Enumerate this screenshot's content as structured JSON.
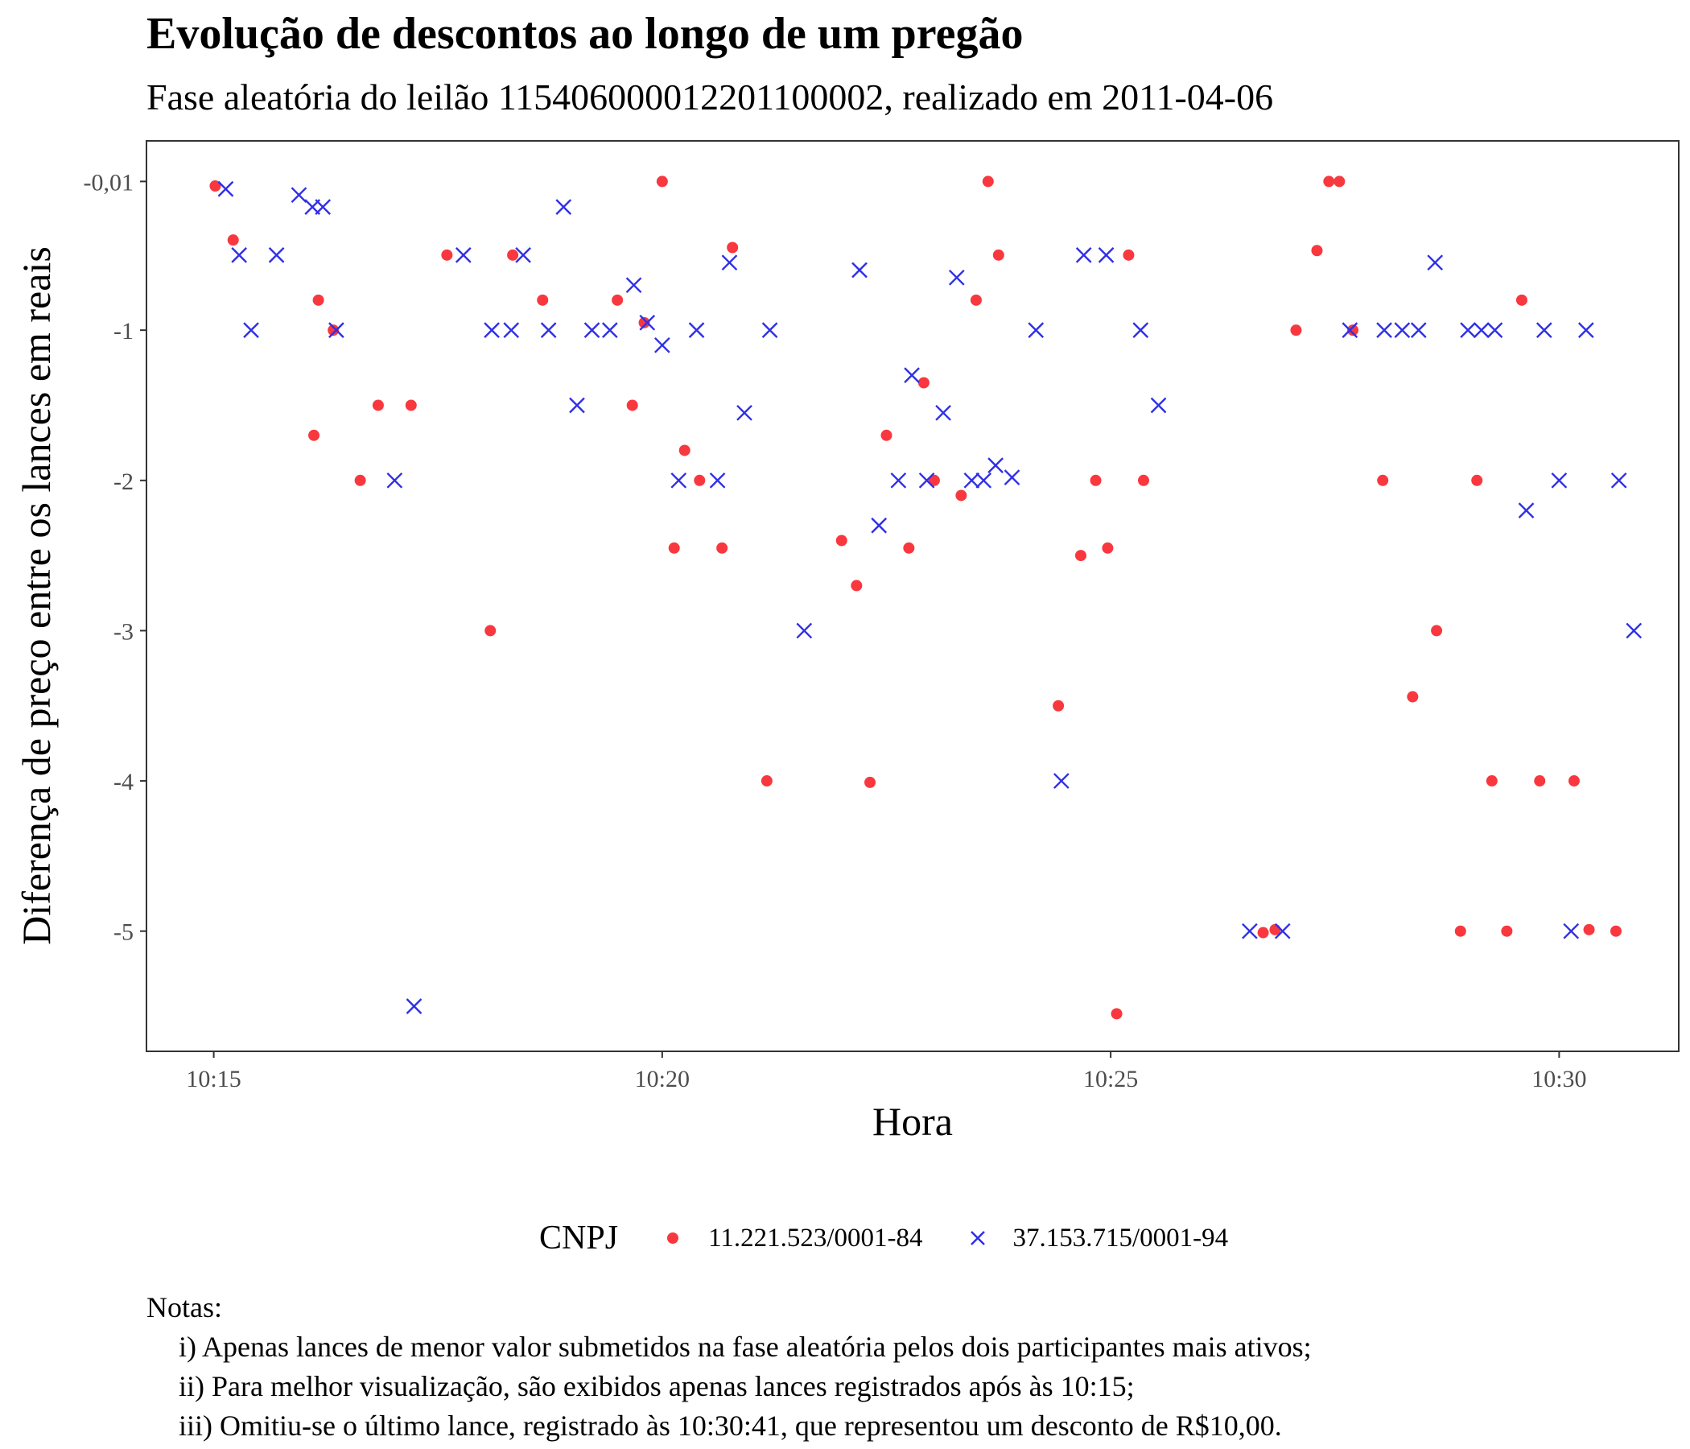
{
  "chart_data": {
    "type": "scatter",
    "title": "Evolução de descontos ao longo de um pregão",
    "subtitle": "Fase aleatória do leilão 115406000012201100002, realizado em 2011-04-06",
    "xlabel": "Hora",
    "ylabel": "Diferença de preço entre os lances em reais",
    "xlim": [
      "10:14:15",
      "10:31:20"
    ],
    "ylim": [
      -5.8,
      0.26
    ],
    "x_ticks": [
      {
        "value": "10:15:00",
        "label": "10:15"
      },
      {
        "value": "10:20:00",
        "label": "10:20"
      },
      {
        "value": "10:25:00",
        "label": "10:25"
      },
      {
        "value": "10:30:00",
        "label": "10:30"
      }
    ],
    "y_ticks": [
      {
        "value": -0.01,
        "label": "-0,01"
      },
      {
        "value": -1,
        "label": "-1"
      },
      {
        "value": -2,
        "label": "-2"
      },
      {
        "value": -3,
        "label": "-3"
      },
      {
        "value": -4,
        "label": "-4"
      },
      {
        "value": -5,
        "label": "-5"
      }
    ],
    "grid": false,
    "legend": {
      "title": "CNPJ",
      "position": "bottom"
    },
    "series": [
      {
        "name": "11.221.523/0001-84",
        "marker": "circle",
        "color": "#f8383e",
        "points": [
          {
            "x": "10:15:01",
            "y": -0.04
          },
          {
            "x": "10:15:13",
            "y": -0.4
          },
          {
            "x": "10:16:07",
            "y": -1.7
          },
          {
            "x": "10:16:10",
            "y": -0.8
          },
          {
            "x": "10:16:20",
            "y": -1.0
          },
          {
            "x": "10:16:38",
            "y": -2.0
          },
          {
            "x": "10:16:50",
            "y": -1.5
          },
          {
            "x": "10:17:12",
            "y": -1.5
          },
          {
            "x": "10:17:36",
            "y": -0.5
          },
          {
            "x": "10:18:05",
            "y": -3.0
          },
          {
            "x": "10:18:20",
            "y": -0.5
          },
          {
            "x": "10:18:40",
            "y": -0.8
          },
          {
            "x": "10:19:30",
            "y": -0.8
          },
          {
            "x": "10:19:40",
            "y": -1.5
          },
          {
            "x": "10:19:48",
            "y": -0.95
          },
          {
            "x": "10:20:00",
            "y": -0.01
          },
          {
            "x": "10:20:08",
            "y": -2.45
          },
          {
            "x": "10:20:15",
            "y": -1.8
          },
          {
            "x": "10:20:25",
            "y": -2.0
          },
          {
            "x": "10:20:40",
            "y": -2.45
          },
          {
            "x": "10:20:47",
            "y": -0.45
          },
          {
            "x": "10:21:10",
            "y": -4.0
          },
          {
            "x": "10:22:00",
            "y": -2.4
          },
          {
            "x": "10:22:10",
            "y": -2.7
          },
          {
            "x": "10:22:19",
            "y": -4.01
          },
          {
            "x": "10:22:30",
            "y": -1.7
          },
          {
            "x": "10:22:45",
            "y": -2.45
          },
          {
            "x": "10:22:55",
            "y": -1.35
          },
          {
            "x": "10:23:02",
            "y": -2.0
          },
          {
            "x": "10:23:20",
            "y": -2.1
          },
          {
            "x": "10:23:30",
            "y": -0.8
          },
          {
            "x": "10:23:38",
            "y": -0.01
          },
          {
            "x": "10:23:45",
            "y": -0.5
          },
          {
            "x": "10:24:25",
            "y": -3.5
          },
          {
            "x": "10:24:40",
            "y": -2.5
          },
          {
            "x": "10:24:50",
            "y": -2.0
          },
          {
            "x": "10:24:58",
            "y": -2.45
          },
          {
            "x": "10:25:04",
            "y": -5.55
          },
          {
            "x": "10:25:12",
            "y": -0.5
          },
          {
            "x": "10:25:22",
            "y": -2.0
          },
          {
            "x": "10:26:42",
            "y": -5.01
          },
          {
            "x": "10:26:50",
            "y": -4.99
          },
          {
            "x": "10:27:04",
            "y": -1.0
          },
          {
            "x": "10:27:18",
            "y": -0.47
          },
          {
            "x": "10:27:26",
            "y": -0.01
          },
          {
            "x": "10:27:33",
            "y": -0.01
          },
          {
            "x": "10:27:42",
            "y": -1.0
          },
          {
            "x": "10:28:02",
            "y": -2.0
          },
          {
            "x": "10:28:22",
            "y": -3.44
          },
          {
            "x": "10:28:38",
            "y": -3.0
          },
          {
            "x": "10:28:54",
            "y": -5.0
          },
          {
            "x": "10:29:05",
            "y": -2.0
          },
          {
            "x": "10:29:15",
            "y": -4.0
          },
          {
            "x": "10:29:25",
            "y": -5.0
          },
          {
            "x": "10:29:35",
            "y": -0.8
          },
          {
            "x": "10:29:47",
            "y": -4.0
          },
          {
            "x": "10:30:10",
            "y": -4.0
          },
          {
            "x": "10:30:20",
            "y": -4.99
          },
          {
            "x": "10:30:38",
            "y": -5.0
          }
        ]
      },
      {
        "name": "37.153.715/0001-94",
        "marker": "x",
        "color": "#2f2fe8",
        "points": [
          {
            "x": "10:15:08",
            "y": -0.06
          },
          {
            "x": "10:15:17",
            "y": -0.5
          },
          {
            "x": "10:15:25",
            "y": -1.0
          },
          {
            "x": "10:15:42",
            "y": -0.5
          },
          {
            "x": "10:15:57",
            "y": -0.1
          },
          {
            "x": "10:16:06",
            "y": -0.18
          },
          {
            "x": "10:16:13",
            "y": -0.18
          },
          {
            "x": "10:16:22",
            "y": -1.0
          },
          {
            "x": "10:17:01",
            "y": -2.0
          },
          {
            "x": "10:17:14",
            "y": -5.5
          },
          {
            "x": "10:17:47",
            "y": -0.5
          },
          {
            "x": "10:18:06",
            "y": -1.0
          },
          {
            "x": "10:18:19",
            "y": -1.0
          },
          {
            "x": "10:18:27",
            "y": -0.5
          },
          {
            "x": "10:18:44",
            "y": -1.0
          },
          {
            "x": "10:18:54",
            "y": -0.18
          },
          {
            "x": "10:19:03",
            "y": -1.5
          },
          {
            "x": "10:19:13",
            "y": -1.0
          },
          {
            "x": "10:19:25",
            "y": -1.0
          },
          {
            "x": "10:19:41",
            "y": -0.7
          },
          {
            "x": "10:19:50",
            "y": -0.95
          },
          {
            "x": "10:20:00",
            "y": -1.1
          },
          {
            "x": "10:20:11",
            "y": -2.0
          },
          {
            "x": "10:20:23",
            "y": -1.0
          },
          {
            "x": "10:20:37",
            "y": -2.0
          },
          {
            "x": "10:20:45",
            "y": -0.55
          },
          {
            "x": "10:20:55",
            "y": -1.55
          },
          {
            "x": "10:21:12",
            "y": -1.0
          },
          {
            "x": "10:21:35",
            "y": -3.0
          },
          {
            "x": "10:22:12",
            "y": -0.6
          },
          {
            "x": "10:22:25",
            "y": -2.3
          },
          {
            "x": "10:22:38",
            "y": -2.0
          },
          {
            "x": "10:22:47",
            "y": -1.3
          },
          {
            "x": "10:22:57",
            "y": -2.0
          },
          {
            "x": "10:23:08",
            "y": -1.55
          },
          {
            "x": "10:23:17",
            "y": -0.65
          },
          {
            "x": "10:23:27",
            "y": -2.0
          },
          {
            "x": "10:23:35",
            "y": -2.0
          },
          {
            "x": "10:23:43",
            "y": -1.9
          },
          {
            "x": "10:23:54",
            "y": -1.98
          },
          {
            "x": "10:24:10",
            "y": -1.0
          },
          {
            "x": "10:24:27",
            "y": -4.0
          },
          {
            "x": "10:24:42",
            "y": -0.5
          },
          {
            "x": "10:24:57",
            "y": -0.5
          },
          {
            "x": "10:25:20",
            "y": -1.0
          },
          {
            "x": "10:25:32",
            "y": -1.5
          },
          {
            "x": "10:26:33",
            "y": -5.0
          },
          {
            "x": "10:26:55",
            "y": -5.0
          },
          {
            "x": "10:27:40",
            "y": -1.0
          },
          {
            "x": "10:28:03",
            "y": -1.0
          },
          {
            "x": "10:28:15",
            "y": -1.0
          },
          {
            "x": "10:28:26",
            "y": -1.0
          },
          {
            "x": "10:28:37",
            "y": -0.55
          },
          {
            "x": "10:28:59",
            "y": -1.0
          },
          {
            "x": "10:29:08",
            "y": -1.0
          },
          {
            "x": "10:29:17",
            "y": -1.0
          },
          {
            "x": "10:29:38",
            "y": -2.2
          },
          {
            "x": "10:29:50",
            "y": -1.0
          },
          {
            "x": "10:30:00",
            "y": -2.0
          },
          {
            "x": "10:30:08",
            "y": -5.0
          },
          {
            "x": "10:30:18",
            "y": -1.0
          },
          {
            "x": "10:30:40",
            "y": -2.0
          },
          {
            "x": "10:30:50",
            "y": -3.0
          }
        ]
      }
    ]
  },
  "notes": {
    "heading": "Notas:",
    "lines": [
      "i) Apenas lances de menor valor submetidos na fase aleatória pelos dois participantes mais ativos;",
      "ii) Para melhor visualização, são exibidos apenas lances registrados após às 10:15;",
      "iii) Omitiu-se o último lance, registrado às 10:30:41, que representou um desconto de R$10,00."
    ]
  }
}
